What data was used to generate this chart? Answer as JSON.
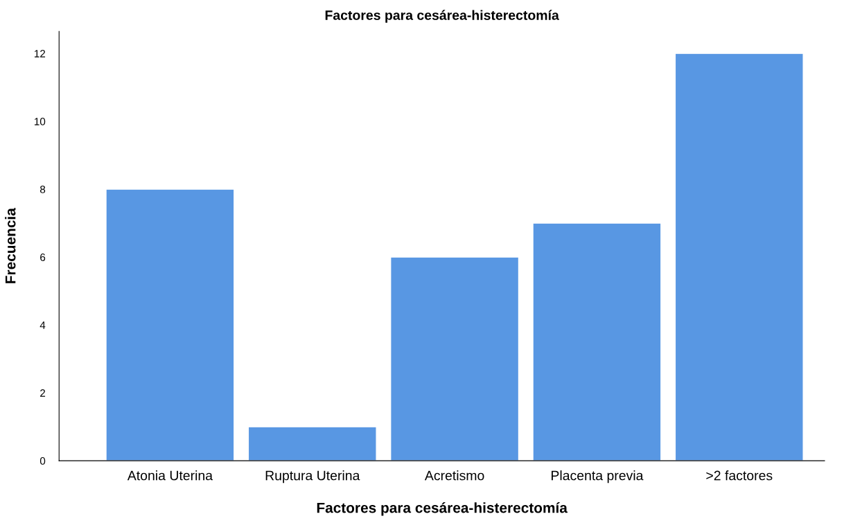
{
  "chart_data": {
    "type": "bar",
    "title": "Factores para cesárea-histerectomía",
    "xlabel": "Factores para cesárea-histerectomía",
    "ylabel": "Frecuencia",
    "categories": [
      "Atonia Uterina",
      "Ruptura Uterina",
      "Acretismo",
      "Placenta previa",
      ">2 factores"
    ],
    "values": [
      8,
      1,
      6,
      7,
      12
    ],
    "color": "#5897e3",
    "ylim": [
      0,
      12.65
    ],
    "yticks": [
      0,
      2,
      4,
      6,
      8,
      10,
      12
    ],
    "grid": false
  }
}
